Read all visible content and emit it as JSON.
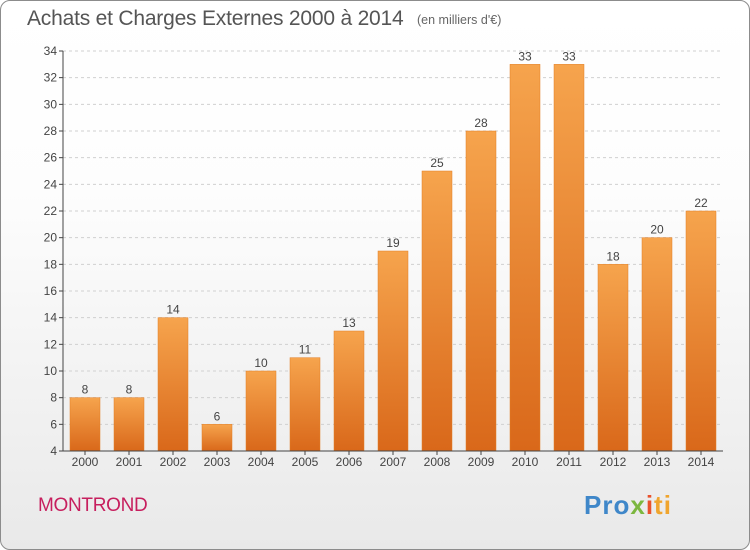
{
  "header": {
    "title": "Achats et Charges Externes 2000 à 2014",
    "subtitle": "(en milliers d'€)"
  },
  "footer": {
    "town": "MONTROND",
    "brand": "Proxiti",
    "brand_parts": [
      "Pro",
      "x",
      "i",
      "ti"
    ]
  },
  "colors": {
    "bar_top": "#f6a44d",
    "bar_bottom": "#d9681a",
    "bar_accent": "#e27e24",
    "grid": "#d0d0d0",
    "axis": "#444444",
    "text": "#444444"
  },
  "chart_data": {
    "type": "bar",
    "title": "Achats et Charges Externes 2000 à 2014",
    "subtitle": "(en milliers d'€)",
    "categories": [
      "2000",
      "2001",
      "2002",
      "2003",
      "2004",
      "2005",
      "2006",
      "2007",
      "2008",
      "2009",
      "2010",
      "2011",
      "2012",
      "2013",
      "2014"
    ],
    "values": [
      8,
      8,
      14,
      6,
      10,
      11,
      13,
      19,
      25,
      28,
      33,
      33,
      18,
      20,
      22
    ],
    "data_labels": [
      "8",
      "8",
      "14",
      "6",
      "10",
      "11",
      "13",
      "19",
      "25",
      "28",
      "33",
      "33",
      "18",
      "20",
      "22"
    ],
    "ylim": [
      4,
      34
    ],
    "yticks": [
      4,
      6,
      8,
      10,
      12,
      14,
      16,
      18,
      20,
      22,
      24,
      26,
      28,
      30,
      32,
      34
    ],
    "grid": true,
    "legend": false
  }
}
